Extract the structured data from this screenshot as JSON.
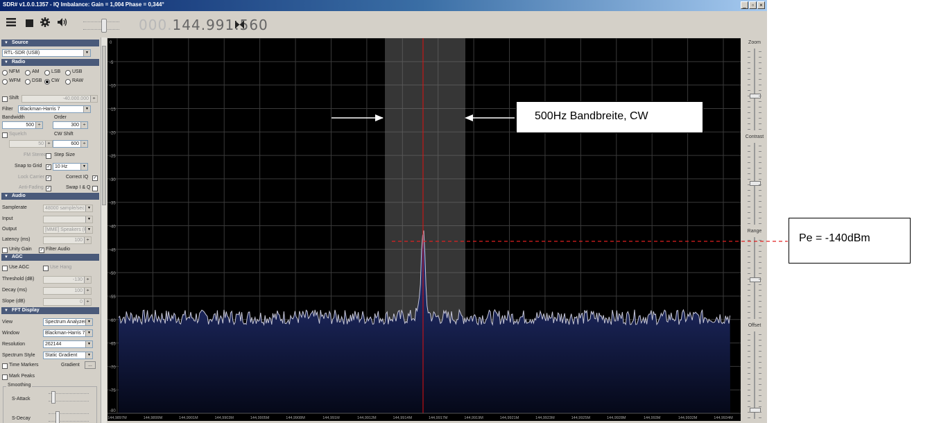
{
  "window": {
    "title": "SDR# v1.0.0.1357 - IQ Imbalance: Gain = 1,004 Phase = 0,344°",
    "buttons": {
      "minimize": "_",
      "maximize": "▫",
      "close": "×"
    }
  },
  "toolbar": {
    "menu_icon": "hamburger-menu-icon",
    "stop_icon": "stop-icon",
    "settings_icon": "gear-icon",
    "audio_icon": "speaker-icon",
    "freq_dim": "000.",
    "freq_main": "144.991.560",
    "tune_icon": "tune-bowtie-icon"
  },
  "source": {
    "header": "Source",
    "device": "RTL-SDR (USB)"
  },
  "radio": {
    "header": "Radio",
    "modes": [
      "NFM",
      "AM",
      "LSB",
      "USB",
      "WFM",
      "DSB",
      "CW",
      "RAW"
    ],
    "selected_mode": "CW",
    "shift_label": "Shift",
    "shift_value": "-40.000.000",
    "filter_label": "Filter",
    "filter_value": "Blackman-Harris 7",
    "bandwidth_label": "Bandwidth",
    "bandwidth_value": "500",
    "order_label": "Order",
    "order_value": "300",
    "squelch_label": "Squelch",
    "squelch_value": "50",
    "cwshift_label": "CW Shift",
    "cwshift_value": "600",
    "fmstereo_label": "FM Stereo",
    "stepsize_label": "Step Size",
    "snap_label": "Snap to Grid",
    "snap_value": "10 Hz",
    "lockcarrier_label": "Lock Carrier",
    "correctiq_label": "Correct IQ",
    "antifading_label": "Anti-Fading",
    "swapiq_label": "Swap I & Q"
  },
  "audio": {
    "header": "Audio",
    "samplerate_label": "Samplerate",
    "samplerate_value": "48000 sample/sec",
    "input_label": "Input",
    "output_label": "Output",
    "output_value": "[MME] Speakers (Real...",
    "latency_label": "Latency (ms)",
    "latency_value": "100",
    "unitygain_label": "Unity Gain",
    "filteraudio_label": "Filter Audio"
  },
  "agc": {
    "header": "AGC",
    "useagc_label": "Use AGC",
    "usehang_label": "Use Hang",
    "threshold_label": "Threshold (dB)",
    "threshold_value": "-130",
    "decay_label": "Decay (ms)",
    "decay_value": "100",
    "slope_label": "Slope (dB)",
    "slope_value": "0"
  },
  "fft": {
    "header": "FFT Display",
    "view_label": "View",
    "view_value": "Spectrum Analyzer",
    "window_label": "Window",
    "window_value": "Blackman-Harris 7",
    "resolution_label": "Resolution",
    "resolution_value": "262144",
    "style_label": "Spectrum Style",
    "style_value": "Static Gradient",
    "timemarkers_label": "Time Markers",
    "gradient_label": "Gradient",
    "gradient_button": "...",
    "markpeaks_label": "Mark Peaks",
    "smoothing_label": "Smoothing",
    "sattack_label": "S-Attack",
    "sdecay_label": "S-Decay"
  },
  "right_panel": {
    "zoom_label": "Zoom",
    "contrast_label": "Contrast",
    "range_label": "Range",
    "offset_label": "Offset"
  },
  "chart_data": {
    "type": "line",
    "xlabel": "",
    "ylabel": "",
    "ylim": [
      -80,
      0
    ],
    "y_ticks": [
      "0",
      "-5",
      "-10",
      "-15",
      "-20",
      "-25",
      "-30",
      "-35",
      "-40",
      "-45",
      "-50",
      "-55",
      "-60",
      "-65",
      "-70",
      "-75",
      "-80"
    ],
    "x_ticks": [
      "144,9897M",
      "144,9899M",
      "144,9901M",
      "144,9903M",
      "144,9905M",
      "144,9908M",
      "144,991M",
      "144,9912M",
      "144,9914M",
      "144,9917M",
      "144,9919M",
      "144,9921M",
      "144,9923M",
      "144,9925M",
      "144,9928M",
      "144,993M",
      "144,9932M",
      "144,9934M"
    ],
    "noise_floor_db": -59.5,
    "noise_spread_db": 1.6,
    "peak": {
      "frequency": "144,99156M",
      "level_db": -43
    },
    "passband": {
      "from": "144,99131M",
      "to": "144,99181M"
    },
    "colors": {
      "background": "#000000",
      "grid": "#3a3a3a",
      "trace": "#c8c8d8",
      "fill_top": "#2a3a88",
      "fill_bottom": "#050818",
      "passband": "#808080",
      "center_line": "#e01010"
    }
  },
  "annotations": {
    "bandwidth_text": "500Hz Bandbreite, CW",
    "power_text": "Pe = -140dBm",
    "arrow_color": "#ffffff",
    "dashed_color": "#e02020"
  }
}
